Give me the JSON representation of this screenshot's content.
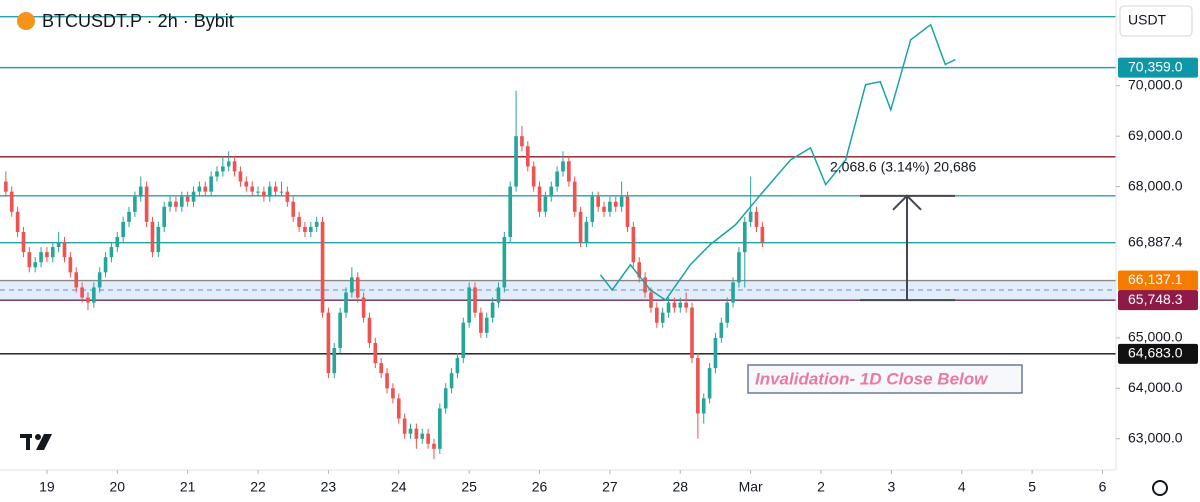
{
  "chart_data": {
    "type": "candlestick",
    "title": "BTCUSDT.P · 2h · Bybit",
    "currency": "USDT",
    "up_color": "#26a69a",
    "down_color": "#ef5350",
    "xlim": [
      -1,
      189.3
    ],
    "ylim": [
      62380,
      71700
    ],
    "xticks": [
      {
        "value": 7,
        "label": "19"
      },
      {
        "value": 19,
        "label": "20"
      },
      {
        "value": 31,
        "label": "21"
      },
      {
        "value": 43,
        "label": "22"
      },
      {
        "value": 55,
        "label": "23"
      },
      {
        "value": 67,
        "label": "24"
      },
      {
        "value": 79,
        "label": "25"
      },
      {
        "value": 91,
        "label": "26"
      },
      {
        "value": 103,
        "label": "27"
      },
      {
        "value": 115,
        "label": "28"
      },
      {
        "value": 127,
        "label": "Mar"
      },
      {
        "value": 139,
        "label": "2"
      },
      {
        "value": 151,
        "label": "3"
      },
      {
        "value": 163,
        "label": "4"
      },
      {
        "value": 175,
        "label": "5"
      },
      {
        "value": 187,
        "label": "6"
      }
    ],
    "yticks": [
      {
        "value": 70000,
        "label": "70,000.0"
      },
      {
        "value": 69000,
        "label": "69,000.0"
      },
      {
        "value": 68000,
        "label": "68,000.0"
      },
      {
        "value": 65000,
        "label": "65,000.0"
      },
      {
        "value": 64000,
        "label": "64,000.0"
      },
      {
        "value": 63000,
        "label": "63,000.0"
      }
    ],
    "candles": [
      [
        68100,
        68300,
        67800,
        67900
      ],
      [
        67900,
        68000,
        67400,
        67500
      ],
      [
        67500,
        67600,
        67000,
        67100
      ],
      [
        67100,
        67200,
        66600,
        66700
      ],
      [
        66700,
        66800,
        66300,
        66400
      ],
      [
        66400,
        66600,
        66300,
        66500
      ],
      [
        66500,
        66800,
        66400,
        66700
      ],
      [
        66700,
        66800,
        66500,
        66600
      ],
      [
        66600,
        66900,
        66500,
        66800
      ],
      [
        66800,
        67100,
        66700,
        66900
      ],
      [
        66900,
        67000,
        66500,
        66600
      ],
      [
        66600,
        66700,
        66200,
        66300
      ],
      [
        66300,
        66400,
        65900,
        66000
      ],
      [
        66000,
        66100,
        65700,
        65800
      ],
      [
        65800,
        65900,
        65550,
        65700
      ],
      [
        65700,
        66100,
        65600,
        66000
      ],
      [
        66000,
        66400,
        65900,
        66300
      ],
      [
        66300,
        66700,
        66200,
        66600
      ],
      [
        66600,
        66900,
        66500,
        66800
      ],
      [
        66800,
        67100,
        66700,
        67000
      ],
      [
        67000,
        67400,
        66900,
        67300
      ],
      [
        67300,
        67600,
        67200,
        67500
      ],
      [
        67500,
        67900,
        67400,
        67800
      ],
      [
        67800,
        68200,
        67700,
        68000
      ],
      [
        68000,
        68100,
        67200,
        67300
      ],
      [
        67300,
        67400,
        66600,
        66700
      ],
      [
        66700,
        67300,
        66600,
        67200
      ],
      [
        67200,
        67700,
        67100,
        67600
      ],
      [
        67600,
        67800,
        67500,
        67700
      ],
      [
        67700,
        67800,
        67500,
        67600
      ],
      [
        67600,
        67900,
        67500,
        67800
      ],
      [
        67800,
        67900,
        67600,
        67700
      ],
      [
        67700,
        68000,
        67600,
        67900
      ],
      [
        67900,
        68100,
        67800,
        68000
      ],
      [
        68000,
        68100,
        67800,
        67900
      ],
      [
        67900,
        68300,
        67800,
        68200
      ],
      [
        68200,
        68400,
        68100,
        68300
      ],
      [
        68300,
        68600,
        68200,
        68400
      ],
      [
        68400,
        68700,
        68300,
        68500
      ],
      [
        68500,
        68600,
        68200,
        68300
      ],
      [
        68300,
        68400,
        68000,
        68100
      ],
      [
        68100,
        68200,
        67900,
        68000
      ],
      [
        68000,
        68100,
        67800,
        67900
      ],
      [
        67900,
        68000,
        67800,
        67900
      ],
      [
        67900,
        68000,
        67700,
        67800
      ],
      [
        67800,
        68100,
        67700,
        68000
      ],
      [
        68000,
        68100,
        67800,
        67900
      ],
      [
        67900,
        68100,
        67800,
        67900
      ],
      [
        67900,
        68000,
        67600,
        67700
      ],
      [
        67700,
        67800,
        67300,
        67400
      ],
      [
        67400,
        67500,
        67100,
        67200
      ],
      [
        67200,
        67300,
        67000,
        67100
      ],
      [
        67100,
        67300,
        67000,
        67200
      ],
      [
        67200,
        67400,
        67100,
        67300
      ],
      [
        67300,
        67400,
        65400,
        65500
      ],
      [
        65500,
        65600,
        64200,
        64300
      ],
      [
        64300,
        64900,
        64200,
        64800
      ],
      [
        64800,
        65600,
        64700,
        65500
      ],
      [
        65500,
        66000,
        65400,
        65900
      ],
      [
        65900,
        66400,
        65800,
        66200
      ],
      [
        66200,
        66300,
        65700,
        65800
      ],
      [
        65800,
        65900,
        65300,
        65400
      ],
      [
        65400,
        65500,
        64800,
        64900
      ],
      [
        64900,
        65000,
        64400,
        64500
      ],
      [
        64500,
        64600,
        64200,
        64300
      ],
      [
        64300,
        64400,
        63900,
        64000
      ],
      [
        64000,
        64100,
        63700,
        63800
      ],
      [
        63800,
        63900,
        63300,
        63400
      ],
      [
        63400,
        63500,
        63000,
        63100
      ],
      [
        63100,
        63300,
        63000,
        63200
      ],
      [
        63200,
        63300,
        62800,
        63000
      ],
      [
        63000,
        63200,
        62900,
        63100
      ],
      [
        63100,
        63200,
        62800,
        62900
      ],
      [
        62900,
        63000,
        62600,
        62800
      ],
      [
        62800,
        63700,
        62700,
        63600
      ],
      [
        63600,
        64100,
        63500,
        64000
      ],
      [
        64000,
        64400,
        63900,
        64300
      ],
      [
        64300,
        64700,
        64200,
        64600
      ],
      [
        64600,
        65400,
        64500,
        65300
      ],
      [
        65300,
        66100,
        65200,
        66000
      ],
      [
        66000,
        66100,
        65400,
        65500
      ],
      [
        65500,
        65600,
        65000,
        65100
      ],
      [
        65100,
        65500,
        65000,
        65400
      ],
      [
        65400,
        65800,
        65300,
        65700
      ],
      [
        65700,
        66100,
        65600,
        66000
      ],
      [
        66000,
        67100,
        65900,
        67000
      ],
      [
        67000,
        68100,
        66900,
        68000
      ],
      [
        68000,
        69900,
        67900,
        69000
      ],
      [
        69000,
        69200,
        68700,
        68800
      ],
      [
        68800,
        68900,
        68300,
        68400
      ],
      [
        68400,
        68500,
        67900,
        68000
      ],
      [
        68000,
        68100,
        67400,
        67500
      ],
      [
        67500,
        67900,
        67400,
        67800
      ],
      [
        67800,
        68100,
        67700,
        68000
      ],
      [
        68000,
        68400,
        67900,
        68300
      ],
      [
        68300,
        68700,
        68200,
        68500
      ],
      [
        68500,
        68600,
        68000,
        68100
      ],
      [
        68100,
        68200,
        67400,
        67500
      ],
      [
        67500,
        67600,
        66800,
        66900
      ],
      [
        66900,
        67400,
        66800,
        67300
      ],
      [
        67300,
        67900,
        67200,
        67800
      ],
      [
        67800,
        67900,
        67500,
        67600
      ],
      [
        67600,
        67700,
        67400,
        67500
      ],
      [
        67500,
        67800,
        67400,
        67700
      ],
      [
        67700,
        67800,
        67500,
        67600
      ],
      [
        67600,
        68100,
        67500,
        67800
      ],
      [
        67800,
        67900,
        67100,
        67200
      ],
      [
        67200,
        67300,
        66400,
        66500
      ],
      [
        66500,
        66600,
        66100,
        66200
      ],
      [
        66200,
        66300,
        65800,
        65900
      ],
      [
        65900,
        66000,
        65500,
        65600
      ],
      [
        65600,
        65700,
        65200,
        65300
      ],
      [
        65300,
        65600,
        65200,
        65500
      ],
      [
        65500,
        65800,
        65400,
        65700
      ],
      [
        65700,
        65800,
        65500,
        65600
      ],
      [
        65600,
        65800,
        65500,
        65700
      ],
      [
        65700,
        65900,
        65500,
        65600
      ],
      [
        65600,
        65700,
        64500,
        64600
      ],
      [
        64600,
        64700,
        63000,
        63500
      ],
      [
        63500,
        63900,
        63300,
        63800
      ],
      [
        63800,
        64500,
        63700,
        64400
      ],
      [
        64400,
        65100,
        64300,
        65000
      ],
      [
        65000,
        65400,
        64900,
        65300
      ],
      [
        65300,
        65800,
        65200,
        65700
      ],
      [
        65700,
        66200,
        65600,
        66100
      ],
      [
        66100,
        66800,
        66000,
        66700
      ],
      [
        66700,
        67400,
        66000,
        67300
      ],
      [
        67300,
        68200,
        67200,
        67500
      ],
      [
        67500,
        67600,
        67100,
        67200
      ],
      [
        67200,
        67300,
        66800,
        66900
      ]
    ],
    "levels": [
      {
        "value": 71370,
        "color": "#26a0a8"
      },
      {
        "value": 70359,
        "label": "70,359.0",
        "color": "#26a0a8",
        "label_bg": "#0f97a8"
      },
      {
        "value": 68590,
        "color": "#8b1a1a"
      },
      {
        "value": 67816.9,
        "color": "#26a0a8"
      },
      {
        "value": 66887.4,
        "label": "66,887.4",
        "color": "#26a0a8",
        "label_bg": "#ffffff"
      },
      {
        "value": 66137.1,
        "label": "66,137.1",
        "color": "#888888",
        "label_bg": "#f57c00"
      },
      {
        "value": 65950,
        "color": "#6a8fd0",
        "style": "dashed"
      },
      {
        "value": 65748.3,
        "label": "65,748.3",
        "color": "#6a2a5a",
        "label_bg": "#8e1a4a"
      },
      {
        "value": 64683,
        "label": "64,683.0",
        "color": "#111111",
        "label_bg": "#111111"
      }
    ],
    "zone": {
      "low": 65748.3,
      "high": 66137.1,
      "color": "#e3edf9"
    },
    "projection": {
      "color": "#1aa3a0",
      "x": [
        101.4,
        103.4,
        106.5,
        109.9,
        112.5,
        116.7,
        120.1,
        124.4,
        128.7,
        133.8,
        137.2,
        139.8,
        143.2,
        146.6,
        149.1,
        150.9,
        154.3,
        157.7,
        160.2,
        161.9
      ],
      "values": [
        66250,
        65950,
        66450,
        65950,
        65750,
        66450,
        66850,
        67240,
        67840,
        68530,
        68770,
        68040,
        68530,
        70020,
        70080,
        69520,
        70910,
        71210,
        70420,
        70520
      ]
    },
    "measure": {
      "label": "2,068.6 (3.14%) 20,686",
      "from": 65748.3,
      "to": 67816.9
    },
    "annotation": "Invalidation- 1D Close Below"
  }
}
